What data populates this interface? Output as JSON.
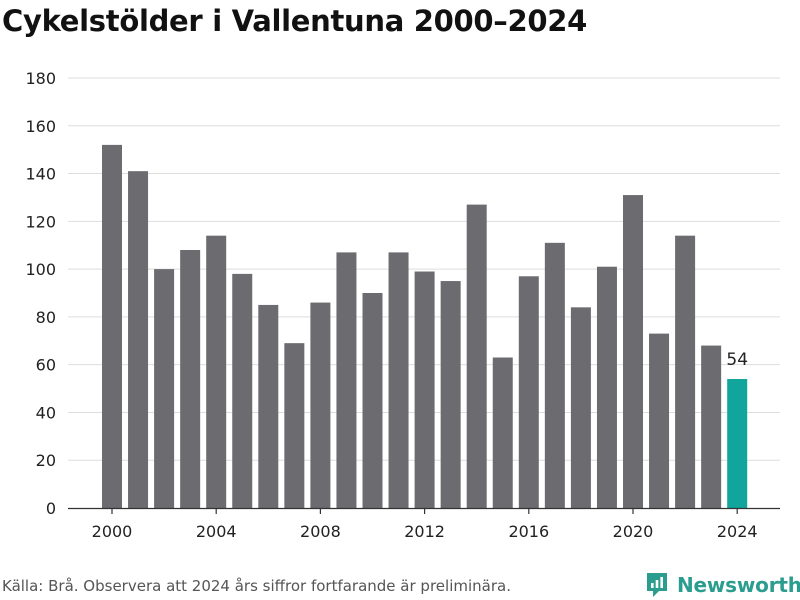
{
  "header": {
    "title": "Cykelstölder i Vallentuna 2000–2024"
  },
  "footer": {
    "source": "Källa: Brå. Observera att 2024 års siffror fortfarande är preliminära.",
    "brand": "Newsworthy"
  },
  "colors": {
    "bar": "#6c6b70",
    "highlight": "#11a59b",
    "grid": "#dddddd",
    "axis": "#333333",
    "brand": "#2a9d8f"
  },
  "icons": {
    "brand_logo": "newsworthy-logo-icon"
  },
  "chart_data": {
    "type": "bar",
    "title": "Cykelstölder i Vallentuna 2000–2024",
    "xlabel": "",
    "ylabel": "",
    "categories": [
      "2000",
      "2001",
      "2002",
      "2003",
      "2004",
      "2005",
      "2006",
      "2007",
      "2008",
      "2009",
      "2010",
      "2011",
      "2012",
      "2013",
      "2014",
      "2015",
      "2016",
      "2017",
      "2018",
      "2019",
      "2020",
      "2021",
      "2022",
      "2023",
      "2024"
    ],
    "values": [
      152,
      141,
      100,
      108,
      114,
      98,
      85,
      69,
      86,
      107,
      90,
      107,
      99,
      95,
      127,
      63,
      97,
      111,
      84,
      101,
      131,
      73,
      114,
      68,
      54
    ],
    "highlight_category": "2024",
    "data_labels": [
      {
        "category": "2024",
        "text": "54"
      }
    ],
    "ylim": [
      0,
      180
    ],
    "yticks": [
      0,
      20,
      40,
      60,
      80,
      100,
      120,
      140,
      160,
      180
    ],
    "xticks": [
      "2000",
      "2004",
      "2008",
      "2012",
      "2016",
      "2020",
      "2024"
    ],
    "grid": true,
    "legend": "none"
  }
}
